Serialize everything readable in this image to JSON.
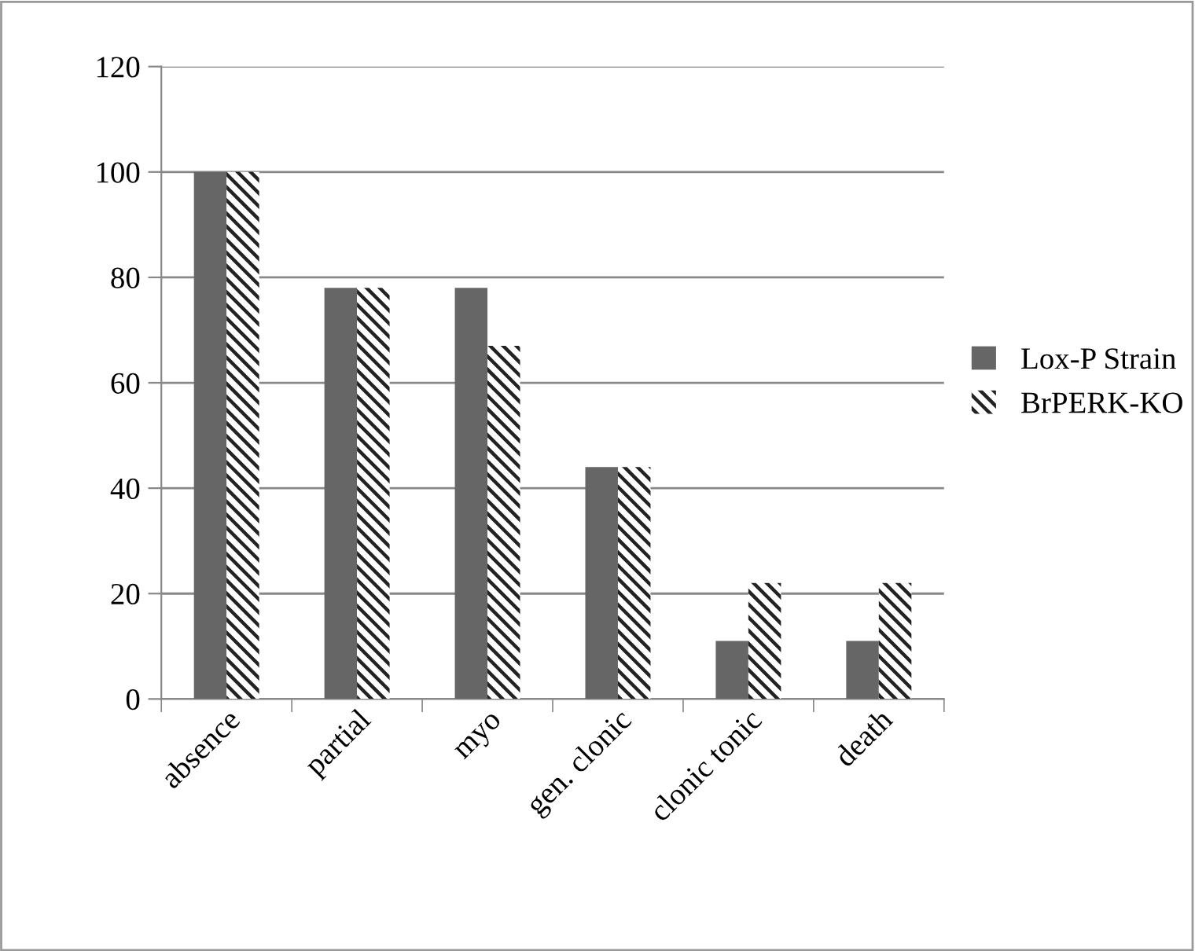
{
  "chart_data": {
    "type": "bar",
    "categories": [
      "absence",
      "partial",
      "myo",
      "gen. clonic",
      "clonic tonic",
      "death"
    ],
    "series": [
      {
        "name": "Lox-P Strain",
        "color": "#666666",
        "values": [
          100,
          78,
          78,
          44,
          11,
          11
        ]
      },
      {
        "name": "BrPERK-KO",
        "color": "#222222",
        "values": [
          100,
          78,
          67,
          44,
          22,
          22
        ]
      }
    ],
    "ylim": [
      0,
      120
    ],
    "yticks": [
      0,
      20,
      40,
      60,
      80,
      100,
      120
    ],
    "grid": "y",
    "legend": "right"
  }
}
